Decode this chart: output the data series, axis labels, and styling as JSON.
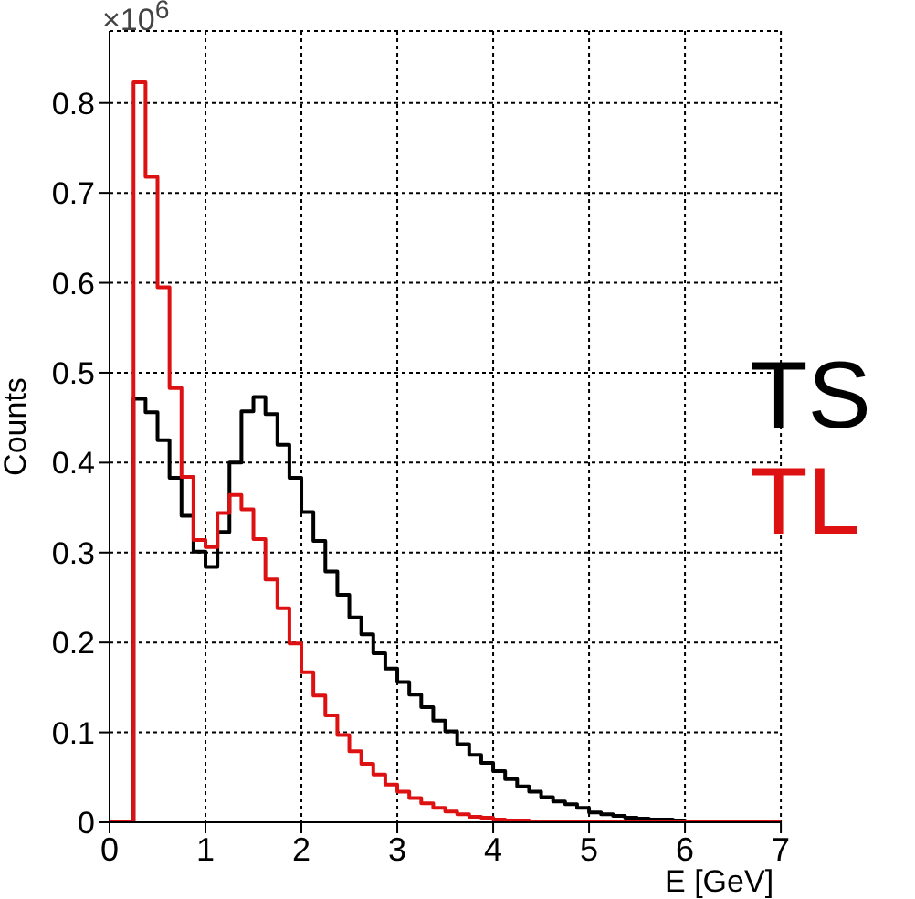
{
  "chart_data": {
    "type": "histogram",
    "xlabel": "E [GeV]",
    "ylabel": "Counts",
    "annotations": [
      "×10$^{6}$"
    ],
    "bins": [
      0,
      0.125,
      0.25,
      0.375,
      0.5,
      0.625,
      0.75,
      0.875,
      1,
      1.125,
      1.25,
      1.375,
      1.5,
      1.625,
      1.75,
      1.875,
      2,
      2.125,
      2.25,
      2.375,
      2.5,
      2.625,
      2.75,
      2.875,
      3,
      3.125,
      3.25,
      3.375,
      3.5,
      3.625,
      3.75,
      3.875,
      4,
      4.125,
      4.25,
      4.375,
      4.5,
      4.625,
      4.75,
      4.875,
      5,
      5.125,
      5.25,
      5.375,
      5.5,
      5.625,
      5.75,
      5.875,
      6,
      6.125,
      6.25,
      6.375,
      6.5,
      6.625,
      6.75,
      6.875,
      7
    ],
    "series": [
      {
        "name": "TS",
        "color": "#000000",
        "values": [
          0,
          0,
          0.471,
          0.456,
          0.425,
          0.383,
          0.341,
          0.301,
          0.284,
          0.323,
          0.4,
          0.457,
          0.473,
          0.454,
          0.42,
          0.383,
          0.345,
          0.313,
          0.279,
          0.253,
          0.228,
          0.209,
          0.188,
          0.171,
          0.156,
          0.142,
          0.128,
          0.113,
          0.101,
          0.087,
          0.075,
          0.066,
          0.057,
          0.048,
          0.04,
          0.034,
          0.028,
          0.023,
          0.02,
          0.016,
          0.011,
          0.009,
          0.007,
          0.005,
          0.004,
          0.003,
          0.003,
          0.002,
          0.001,
          0.001,
          0.001,
          0.001,
          0,
          0,
          0,
          0
        ]
      },
      {
        "name": "TL",
        "color": "#dd1111",
        "values": [
          0,
          0,
          0.823,
          0.718,
          0.595,
          0.483,
          0.384,
          0.314,
          0.306,
          0.344,
          0.364,
          0.348,
          0.315,
          0.27,
          0.238,
          0.199,
          0.167,
          0.141,
          0.119,
          0.097,
          0.079,
          0.065,
          0.053,
          0.042,
          0.034,
          0.027,
          0.021,
          0.016,
          0.012,
          0.009,
          0.006,
          0.005,
          0.003,
          0.002,
          0.002,
          0.001,
          0.001,
          0.001,
          0,
          0,
          0,
          0,
          0,
          0,
          0,
          0,
          0,
          0,
          0,
          0,
          0,
          0,
          0,
          0,
          0,
          0
        ]
      }
    ],
    "xlim": [
      0,
      7
    ],
    "xticks": [
      0,
      1,
      2,
      3,
      4,
      5,
      6,
      7
    ],
    "ylim": [
      0,
      0.88
    ],
    "yticks": [
      0,
      0.1,
      0.2,
      0.3,
      0.4,
      0.5,
      0.6,
      0.7,
      0.8
    ],
    "grid": true,
    "legend": "right"
  }
}
